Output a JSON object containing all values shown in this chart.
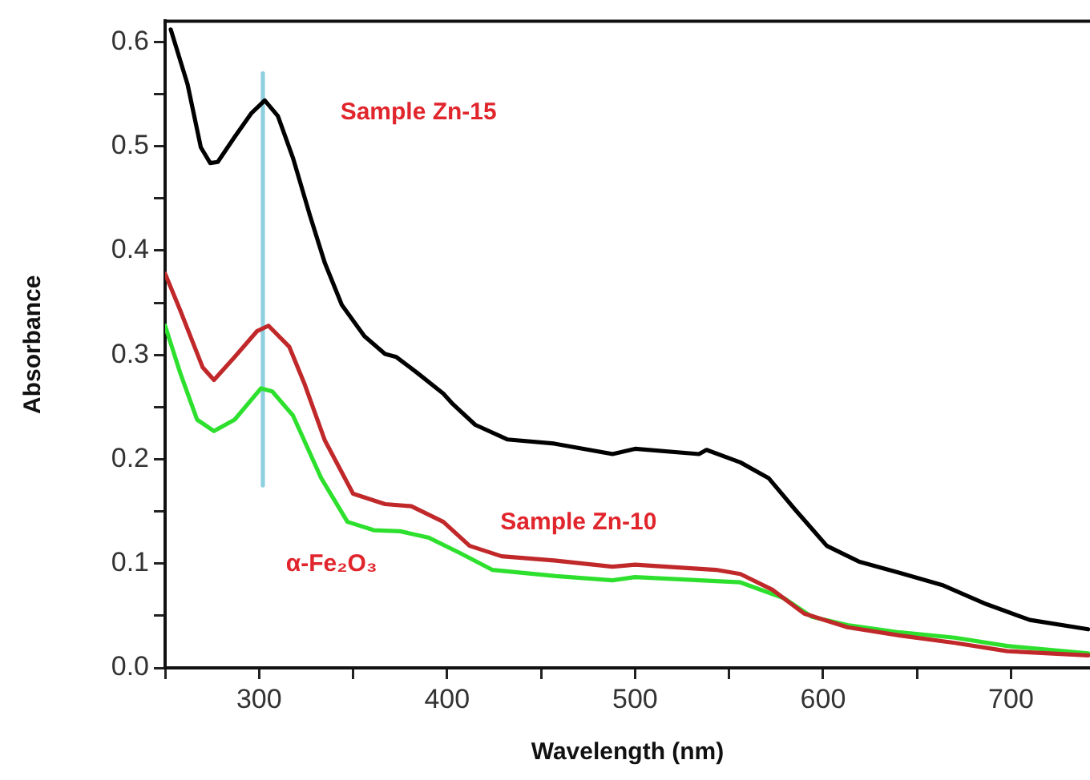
{
  "chart_data": {
    "type": "line",
    "xlabel": "Wavelength (nm)",
    "ylabel": "Absorbance",
    "xlim": [
      250,
      742
    ],
    "ylim": [
      0,
      0.62
    ],
    "xticks": [
      {
        "value": 250,
        "label": null
      },
      300,
      {
        "value": 350,
        "label": null
      },
      400,
      {
        "value": 450,
        "label": null
      },
      500,
      {
        "value": 550,
        "label": null
      },
      600,
      {
        "value": 650,
        "label": null
      },
      700
    ],
    "yticks": [
      {
        "value": 0,
        "label": "0.0"
      },
      {
        "value": 0.05,
        "label": null
      },
      0.1,
      {
        "value": 0.15,
        "label": null
      },
      0.2,
      {
        "value": 0.25,
        "label": null
      },
      0.3,
      {
        "value": 0.35,
        "label": null
      },
      0.4,
      {
        "value": 0.45,
        "label": null
      },
      0.5,
      {
        "value": 0.55,
        "label": null
      },
      0.6
    ],
    "grid": false,
    "legend": false,
    "marker": "none",
    "line_style": "solid",
    "series": [
      {
        "name": "Sample Zn-15",
        "color": "#000000",
        "x": [
          253,
          262,
          269,
          274,
          278,
          287,
          296,
          303,
          310,
          318,
          327,
          335,
          344,
          356,
          367,
          373,
          384,
          398,
          403,
          415,
          432,
          457,
          488,
          500,
          534,
          538,
          556,
          571,
          585,
          602,
          619,
          641,
          664,
          687,
          710,
          741
        ],
        "values": [
          0.612,
          0.559,
          0.499,
          0.484,
          0.485,
          0.509,
          0.532,
          0.544,
          0.529,
          0.489,
          0.434,
          0.388,
          0.348,
          0.318,
          0.301,
          0.298,
          0.283,
          0.263,
          0.253,
          0.233,
          0.219,
          0.215,
          0.205,
          0.21,
          0.205,
          0.209,
          0.197,
          0.182,
          0.152,
          0.117,
          0.102,
          0.091,
          0.079,
          0.061,
          0.046,
          0.037
        ]
      },
      {
        "name": "Sample Zn-10",
        "color": "#c0282a",
        "x": [
          250,
          258,
          270,
          276,
          287,
          299,
          305,
          316,
          324,
          335,
          350,
          367,
          381,
          398,
          412,
          429,
          457,
          488,
          500,
          543,
          556,
          573,
          590,
          613,
          641,
          670,
          698,
          741
        ],
        "values": [
          0.378,
          0.343,
          0.288,
          0.276,
          0.298,
          0.323,
          0.328,
          0.308,
          0.273,
          0.218,
          0.167,
          0.157,
          0.155,
          0.14,
          0.117,
          0.107,
          0.103,
          0.097,
          0.099,
          0.094,
          0.09,
          0.075,
          0.052,
          0.039,
          0.031,
          0.024,
          0.016,
          0.012
        ]
      },
      {
        "name": "α-Fe₂O₃",
        "color": "#2ee02e",
        "x": [
          250,
          258,
          267,
          276,
          287,
          301,
          307,
          318,
          333,
          347,
          361,
          375,
          390,
          407,
          424,
          458,
          488,
          500,
          556,
          579,
          594,
          613,
          641,
          670,
          698,
          741
        ],
        "values": [
          0.328,
          0.283,
          0.238,
          0.227,
          0.238,
          0.268,
          0.265,
          0.242,
          0.182,
          0.14,
          0.132,
          0.131,
          0.125,
          0.11,
          0.094,
          0.088,
          0.084,
          0.087,
          0.082,
          0.067,
          0.049,
          0.041,
          0.034,
          0.029,
          0.021,
          0.014
        ]
      },
      {
        "color": "#8ecfe0",
        "x": [
          302,
          302
        ],
        "values": [
          0.175,
          0.57
        ]
      }
    ]
  }
}
